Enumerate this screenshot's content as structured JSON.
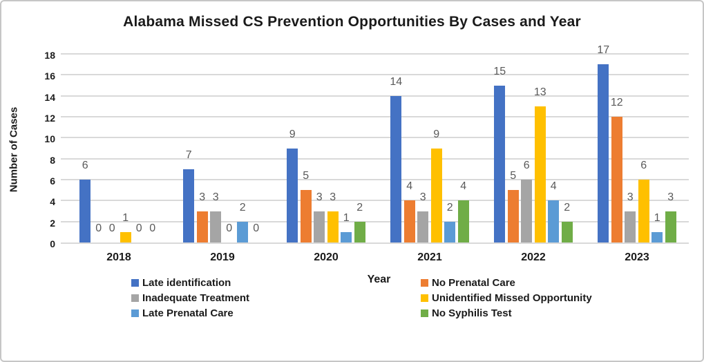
{
  "chart_data": {
    "type": "bar",
    "title": "Alabama Missed CS Prevention Opportunities By Cases and Year",
    "xlabel": "Year",
    "ylabel": "Number of Cases",
    "categories": [
      "2018",
      "2019",
      "2020",
      "2021",
      "2022",
      "2023"
    ],
    "series": [
      {
        "name": "Late identification",
        "color": "#4472C4",
        "values": [
          6,
          7,
          9,
          14,
          15,
          17
        ]
      },
      {
        "name": "No Prenatal Care",
        "color": "#ED7D31",
        "values": [
          0,
          3,
          5,
          4,
          5,
          12
        ]
      },
      {
        "name": "Inadequate Treatment",
        "color": "#A5A5A5",
        "values": [
          0,
          3,
          3,
          3,
          6,
          3
        ]
      },
      {
        "name": "Unidentified Missed Opportunity",
        "color": "#FFC000",
        "values": [
          1,
          0,
          3,
          9,
          13,
          6
        ]
      },
      {
        "name": "Late Prenatal Care",
        "color": "#5B9BD5",
        "values": [
          0,
          2,
          1,
          2,
          4,
          1
        ]
      },
      {
        "name": "No Syphilis Test",
        "color": "#70AD47",
        "values": [
          0,
          0,
          2,
          4,
          2,
          3
        ]
      }
    ],
    "ylim": [
      0,
      18
    ],
    "ytick_step": 2,
    "grid": "horizontal",
    "value_labels": true,
    "legend_position": "bottom",
    "legend_columns": [
      [
        0,
        2,
        4
      ],
      [
        1,
        3,
        5
      ]
    ]
  },
  "colors": {
    "gridline": "#D9D9D9",
    "axis_line": "#D9D9D9",
    "value_label": "#595959",
    "axis_text": "#1A1A1A",
    "frame_border": "#C6C6C6",
    "background": "#FFFFFF"
  }
}
